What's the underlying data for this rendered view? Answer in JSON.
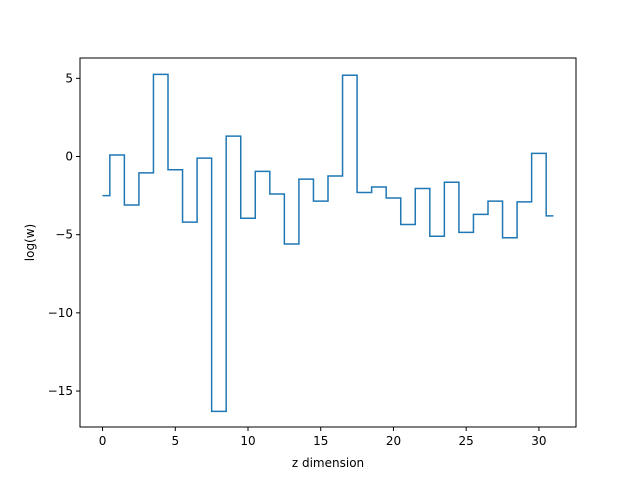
{
  "chart_data": {
    "type": "line",
    "drawstyle": "steps-mid",
    "title": "",
    "xlabel": "z dimension",
    "ylabel": "log(w)",
    "xlim": [
      -1.55,
      32.55
    ],
    "ylim": [
      -17.3,
      6.3
    ],
    "xticks": [
      0,
      5,
      10,
      15,
      20,
      25,
      30
    ],
    "yticks": [
      5,
      0,
      -5,
      -10,
      -15
    ],
    "ytick_labels": [
      "5",
      "0",
      "−5",
      "−10",
      "−15"
    ],
    "grid": false,
    "line_color": "#1f77b4",
    "series": [
      {
        "x": [
          0,
          1,
          2,
          3,
          4,
          5,
          6,
          7,
          8,
          9,
          10,
          11,
          12,
          13,
          14,
          15,
          16,
          17,
          18,
          19,
          20,
          21,
          22,
          23,
          24,
          25,
          26,
          27,
          28,
          29,
          30,
          31
        ],
        "values": [
          -2.5,
          0.1,
          -3.1,
          -1.05,
          5.25,
          -0.85,
          -4.2,
          -0.1,
          -16.3,
          1.3,
          -3.95,
          -0.95,
          -2.4,
          -5.6,
          -1.45,
          -2.85,
          -1.25,
          5.2,
          -2.3,
          -1.95,
          -2.65,
          -4.35,
          -2.05,
          -5.1,
          -1.65,
          -4.85,
          -3.7,
          -2.85,
          -5.2,
          -2.9,
          0.2,
          -3.8
        ]
      }
    ]
  }
}
